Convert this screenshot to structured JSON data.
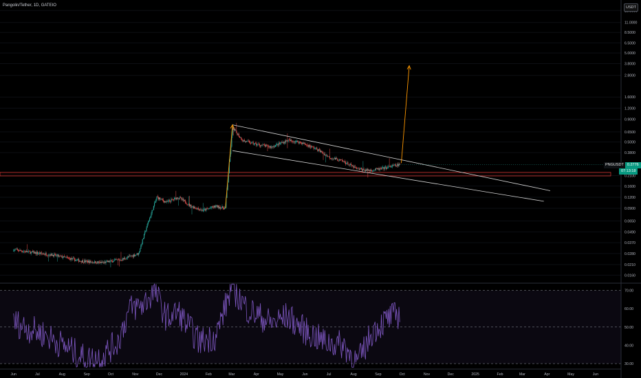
{
  "window": {
    "title": "Pangolin/Tether, 1D, GATEIO"
  },
  "price_axis": {
    "currency": "USDT",
    "last_price_symbol": "PNGUSDT",
    "last_price": "0.2776",
    "countdown": "07:13:18"
  },
  "colors": {
    "background": "#000000",
    "up_candle": "#26a69a",
    "down_candle": "#ef5350",
    "rsi_line": "#7e57c2",
    "trendline": "#d9d9d9",
    "zone": "#e53935",
    "projection_arrow": "#ff9800"
  },
  "chart_data": [
    {
      "type": "candlestick",
      "title": "Pangolin/Tether, 1D, GATEIO",
      "scale": "log",
      "x_tick_labels": [
        "Jun",
        "Jul",
        "Aug",
        "Sep",
        "Oct",
        "Nov",
        "Dec",
        "2024",
        "Feb",
        "Mar",
        "Apr",
        "May",
        "Jun",
        "Jul",
        "Aug",
        "Sep",
        "Oct",
        "Nov",
        "Dec",
        "2025",
        "Feb",
        "Mar",
        "Apr",
        "May",
        "Jun",
        "Jul"
      ],
      "y_tick_labels": [
        "15.0000",
        "11.0000",
        "8.5000",
        "6.5000",
        "5.0000",
        "3.8000",
        "2.8000",
        "1.6000",
        "1.2000",
        "0.9000",
        "0.6500",
        "0.5000",
        "0.3800",
        "0.2100",
        "0.1600",
        "0.1200",
        "0.0900",
        "0.0650",
        "0.0490",
        "0.0370",
        "0.0280",
        "0.0210",
        "0.0160"
      ],
      "ylim": [
        0.013,
        18
      ],
      "anchors": [
        {
          "date": "2023-06-01",
          "price": 0.031
        },
        {
          "date": "2023-06-20",
          "price": 0.029
        },
        {
          "date": "2023-07-20",
          "price": 0.027
        },
        {
          "date": "2023-08-25",
          "price": 0.023
        },
        {
          "date": "2023-09-20",
          "price": 0.022
        },
        {
          "date": "2023-10-15",
          "price": 0.024
        },
        {
          "date": "2023-11-05",
          "price": 0.028
        },
        {
          "date": "2023-11-15",
          "price": 0.055
        },
        {
          "date": "2023-11-28",
          "price": 0.12
        },
        {
          "date": "2023-12-10",
          "price": 0.105
        },
        {
          "date": "2023-12-25",
          "price": 0.12
        },
        {
          "date": "2024-01-10",
          "price": 0.095
        },
        {
          "date": "2024-01-25",
          "price": 0.085
        },
        {
          "date": "2024-02-10",
          "price": 0.095
        },
        {
          "date": "2024-02-22",
          "price": 0.09
        },
        {
          "date": "2024-03-02",
          "price": 0.72
        },
        {
          "date": "2024-03-15",
          "price": 0.52
        },
        {
          "date": "2024-04-01",
          "price": 0.47
        },
        {
          "date": "2024-04-20",
          "price": 0.44
        },
        {
          "date": "2024-05-10",
          "price": 0.52
        },
        {
          "date": "2024-05-25",
          "price": 0.5
        },
        {
          "date": "2024-06-15",
          "price": 0.42
        },
        {
          "date": "2024-07-01",
          "price": 0.34
        },
        {
          "date": "2024-07-20",
          "price": 0.3
        },
        {
          "date": "2024-08-05",
          "price": 0.25
        },
        {
          "date": "2024-08-20",
          "price": 0.24
        },
        {
          "date": "2024-09-05",
          "price": 0.25
        },
        {
          "date": "2024-09-20",
          "price": 0.27
        },
        {
          "date": "2024-09-28",
          "price": 0.2776
        }
      ],
      "last_price": 0.2776,
      "drawings": {
        "channel_upper": [
          {
            "date": "2024-03-02",
            "price": 0.78
          },
          {
            "date": "2025-04-05",
            "price": 0.142
          }
        ],
        "channel_lower": [
          {
            "date": "2024-03-02",
            "price": 0.4
          },
          {
            "date": "2025-03-28",
            "price": 0.108
          }
        ],
        "support_zone": [
          0.208,
          0.228
        ],
        "projection_arrow": [
          {
            "date": "2024-09-30",
            "price": 0.29
          },
          {
            "date": "2024-10-10",
            "price": 3.6
          }
        ],
        "pump_arrow": [
          {
            "date": "2024-02-22",
            "price": 0.09
          },
          {
            "date": "2024-03-02",
            "price": 0.78
          }
        ]
      }
    },
    {
      "type": "line",
      "name": "RSI",
      "y_tick_labels": [
        "70.00",
        "60.00",
        "50.00",
        "40.00",
        "30.00"
      ],
      "ylim": [
        27,
        74
      ],
      "levels": [
        70,
        50,
        30
      ],
      "anchors": [
        {
          "date": "2023-06-01",
          "value": 53
        },
        {
          "date": "2023-06-15",
          "value": 50
        },
        {
          "date": "2023-07-10",
          "value": 46
        },
        {
          "date": "2023-08-10",
          "value": 38
        },
        {
          "date": "2023-09-01",
          "value": 32
        },
        {
          "date": "2023-09-20",
          "value": 34
        },
        {
          "date": "2023-10-10",
          "value": 42
        },
        {
          "date": "2023-10-25",
          "value": 60
        },
        {
          "date": "2023-11-10",
          "value": 62
        },
        {
          "date": "2023-11-25",
          "value": 70
        },
        {
          "date": "2023-12-10",
          "value": 55
        },
        {
          "date": "2023-12-25",
          "value": 58
        },
        {
          "date": "2024-01-20",
          "value": 42
        },
        {
          "date": "2024-02-10",
          "value": 45
        },
        {
          "date": "2024-03-01",
          "value": 72
        },
        {
          "date": "2024-03-20",
          "value": 60
        },
        {
          "date": "2024-04-20",
          "value": 52
        },
        {
          "date": "2024-05-10",
          "value": 56
        },
        {
          "date": "2024-06-01",
          "value": 48
        },
        {
          "date": "2024-06-25",
          "value": 42
        },
        {
          "date": "2024-07-20",
          "value": 40
        },
        {
          "date": "2024-08-06",
          "value": 30
        },
        {
          "date": "2024-08-25",
          "value": 48
        },
        {
          "date": "2024-09-15",
          "value": 55
        },
        {
          "date": "2024-09-28",
          "value": 57
        }
      ]
    }
  ]
}
